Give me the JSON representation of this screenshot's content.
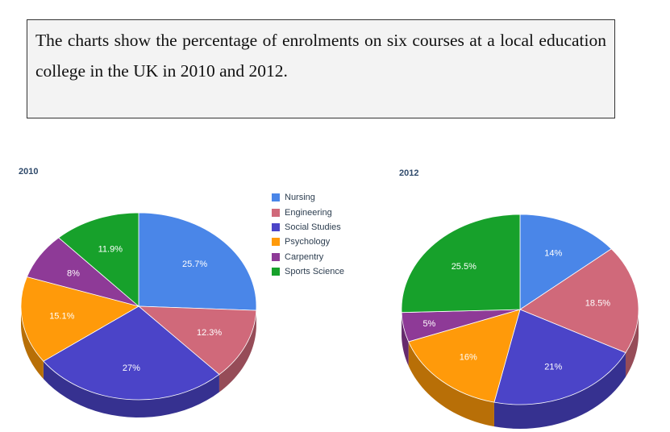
{
  "prompt": {
    "text": "The charts show the percentage of enrolments on six courses at a local education college in the UK in 2010 and 2012."
  },
  "legend": [
    {
      "label": "Nursing",
      "color": "#4a86e8"
    },
    {
      "label": "Engineering",
      "color": "#d0697a"
    },
    {
      "label": "Social Studies",
      "color": "#4b44c8"
    },
    {
      "label": "Psychology",
      "color": "#ff9a0a"
    },
    {
      "label": "Carpentry",
      "color": "#8e3a97"
    },
    {
      "label": "Sports Science",
      "color": "#17a12b"
    }
  ],
  "chart_data": [
    {
      "type": "pie",
      "title": "2010",
      "labels": [
        "Nursing",
        "Engineering",
        "Social Studies",
        "Psychology",
        "Carpentry",
        "Sports Science"
      ],
      "values": [
        25.7,
        12.3,
        27,
        15.1,
        8,
        11.9
      ],
      "data_labels": [
        "25.7%",
        "12.3%",
        "27%",
        "15.1%",
        "8%",
        "11.9%"
      ],
      "style": "3d"
    },
    {
      "type": "pie",
      "title": "2012",
      "labels": [
        "Nursing",
        "Engineering",
        "Social Studies",
        "Psychology",
        "Carpentry",
        "Sports Science"
      ],
      "values": [
        14,
        18.5,
        21,
        16,
        5,
        25.5
      ],
      "data_labels": [
        "14%",
        "18.5%",
        "21%",
        "16%",
        "5%",
        "25.5%"
      ],
      "style": "3d"
    }
  ]
}
